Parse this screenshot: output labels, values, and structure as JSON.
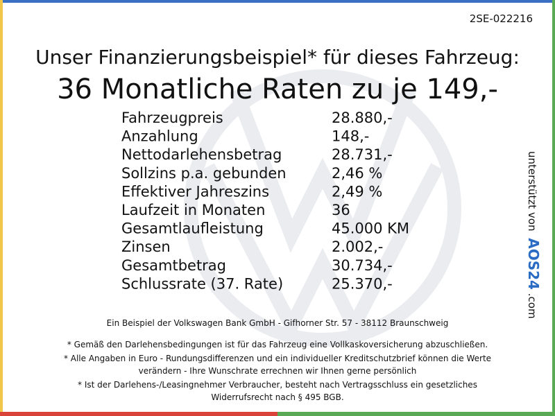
{
  "code": "2SE-022216",
  "title": "Unser Finanzierungsbeispiel* für dieses Fahrzeug:",
  "headline": "36 Monatliche Raten zu je 149,-",
  "table": {
    "rows": [
      [
        "Fahrzeugpreis",
        "28.880,-"
      ],
      [
        "Anzahlung",
        "148,-"
      ],
      [
        "Nettodarlehensbetrag",
        "28.731,-"
      ],
      [
        "Sollzins p.a. gebunden",
        "2,46 %"
      ],
      [
        "Effektiver Jahreszins",
        "2,49 %"
      ],
      [
        "Laufzeit in Monaten",
        "36"
      ],
      [
        "Gesamtlaufleistung",
        "45.000 KM"
      ],
      [
        "Zinsen",
        "2.002,-"
      ],
      [
        "Gesamtbetrag",
        "30.734,-"
      ],
      [
        "Schlussrate (37. Rate)",
        "25.370,-"
      ]
    ]
  },
  "bank": "Ein Beispiel der Volkswagen Bank GmbH - Gifhorner Str. 57 - 38112 Braunschweig",
  "footnotes": [
    [
      "* Gemäß den Darlehensbedingungen ist für das Fahrzeug eine Vollkaskoversicherung abzuschließen."
    ],
    [
      "* Alle Angaben in Euro - Rundungsdifferenzen und ein individueller Kreditschutzbrief können die Werte",
      "verändern - Ihre Wunschrate errechnen wir Ihnen gerne persönlich"
    ],
    [
      "* Ist der Darlehens-/Leasingnehmer Verbraucher, besteht nach Vertragsschluss ein gesetzliches",
      "Widerrufsrecht nach § 495 BGB."
    ]
  ],
  "side": {
    "text": "unterstützt von",
    "logo": "AOS24",
    "suffix": ".com"
  }
}
